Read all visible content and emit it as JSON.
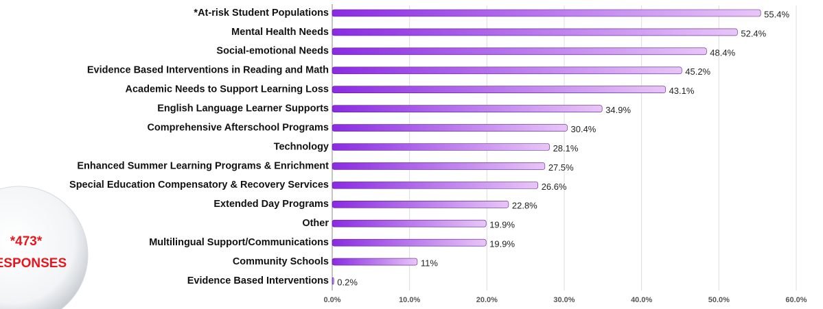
{
  "chart_data": {
    "type": "hbar",
    "categories": [
      "*At-risk Student Populations",
      "Mental Health Needs",
      "Social-emotional Needs",
      "Evidence Based Interventions in Reading and Math",
      "Academic Needs to Support Learning Loss",
      "English Language Learner Supports",
      "Comprehensive Afterschool Programs",
      "Technology",
      "Enhanced Summer Learning Programs & Enrichment",
      "Special Education Compensatory & Recovery Services",
      "Extended Day Programs",
      "Other",
      "Multilingual Support/Communications",
      "Community Schools",
      "Evidence Based Interventions"
    ],
    "values": [
      55.4,
      52.4,
      48.4,
      45.2,
      43.1,
      34.9,
      30.4,
      28.1,
      27.5,
      26.6,
      22.8,
      19.9,
      19.9,
      11,
      0.2
    ],
    "value_labels": [
      "55.4%",
      "52.4%",
      "48.4%",
      "45.2%",
      "43.1%",
      "34.9%",
      "30.4%",
      "28.1%",
      "27.5%",
      "26.6%",
      "22.8%",
      "19.9%",
      "19.9%",
      "11%",
      "0.2%"
    ],
    "color": "#8a2be2",
    "xlim": [
      0,
      60
    ],
    "xticks": [
      {
        "value": 0,
        "label": "0.0%"
      },
      {
        "value": 10,
        "label": "10.0%"
      },
      {
        "value": 20,
        "label": "20.0%"
      },
      {
        "value": 30,
        "label": "30.0%"
      },
      {
        "value": 40,
        "label": "40.0%"
      },
      {
        "value": 50,
        "label": "50.0%"
      },
      {
        "value": 60,
        "label": "60.0%"
      }
    ],
    "grid": true,
    "annotations": [
      "*473*",
      "RESPONSES"
    ]
  }
}
